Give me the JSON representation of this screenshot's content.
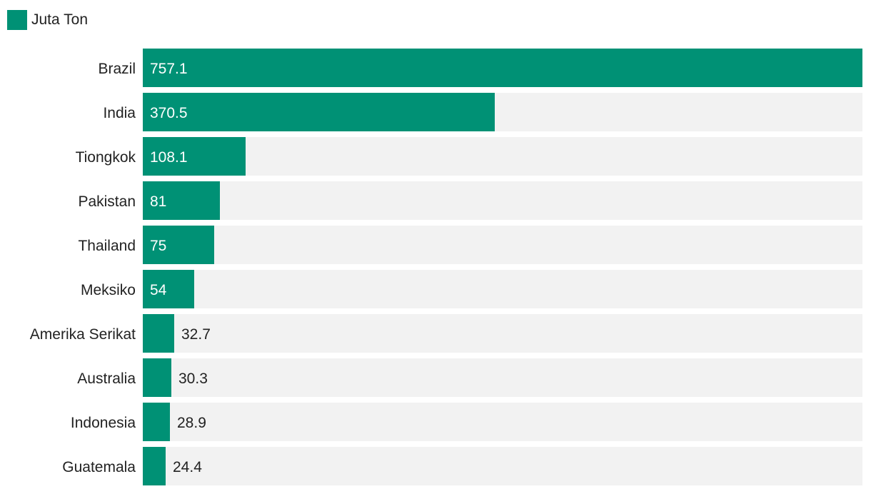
{
  "legend": {
    "label": "Juta Ton"
  },
  "colors": {
    "bar": "#009175",
    "track": "#f2f2f2",
    "label_inside": "#ffffff",
    "label_outside": "#222222"
  },
  "chart_data": {
    "type": "bar",
    "orientation": "horizontal",
    "categories": [
      "Brazil",
      "India",
      "Tiongkok",
      "Pakistan",
      "Thailand",
      "Meksiko",
      "Amerika Serikat",
      "Australia",
      "Indonesia",
      "Guatemala"
    ],
    "series": [
      {
        "name": "Juta Ton",
        "values": [
          757.1,
          370.5,
          108.1,
          81,
          75,
          54,
          32.7,
          30.3,
          28.9,
          24.4
        ]
      }
    ],
    "value_labels": [
      "757.1",
      "370.5",
      "108.1",
      "81",
      "75",
      "54",
      "32.7",
      "30.3",
      "28.9",
      "24.4"
    ],
    "xlim": [
      0,
      757.1
    ],
    "legend_position": "top-left",
    "grid": false
  }
}
